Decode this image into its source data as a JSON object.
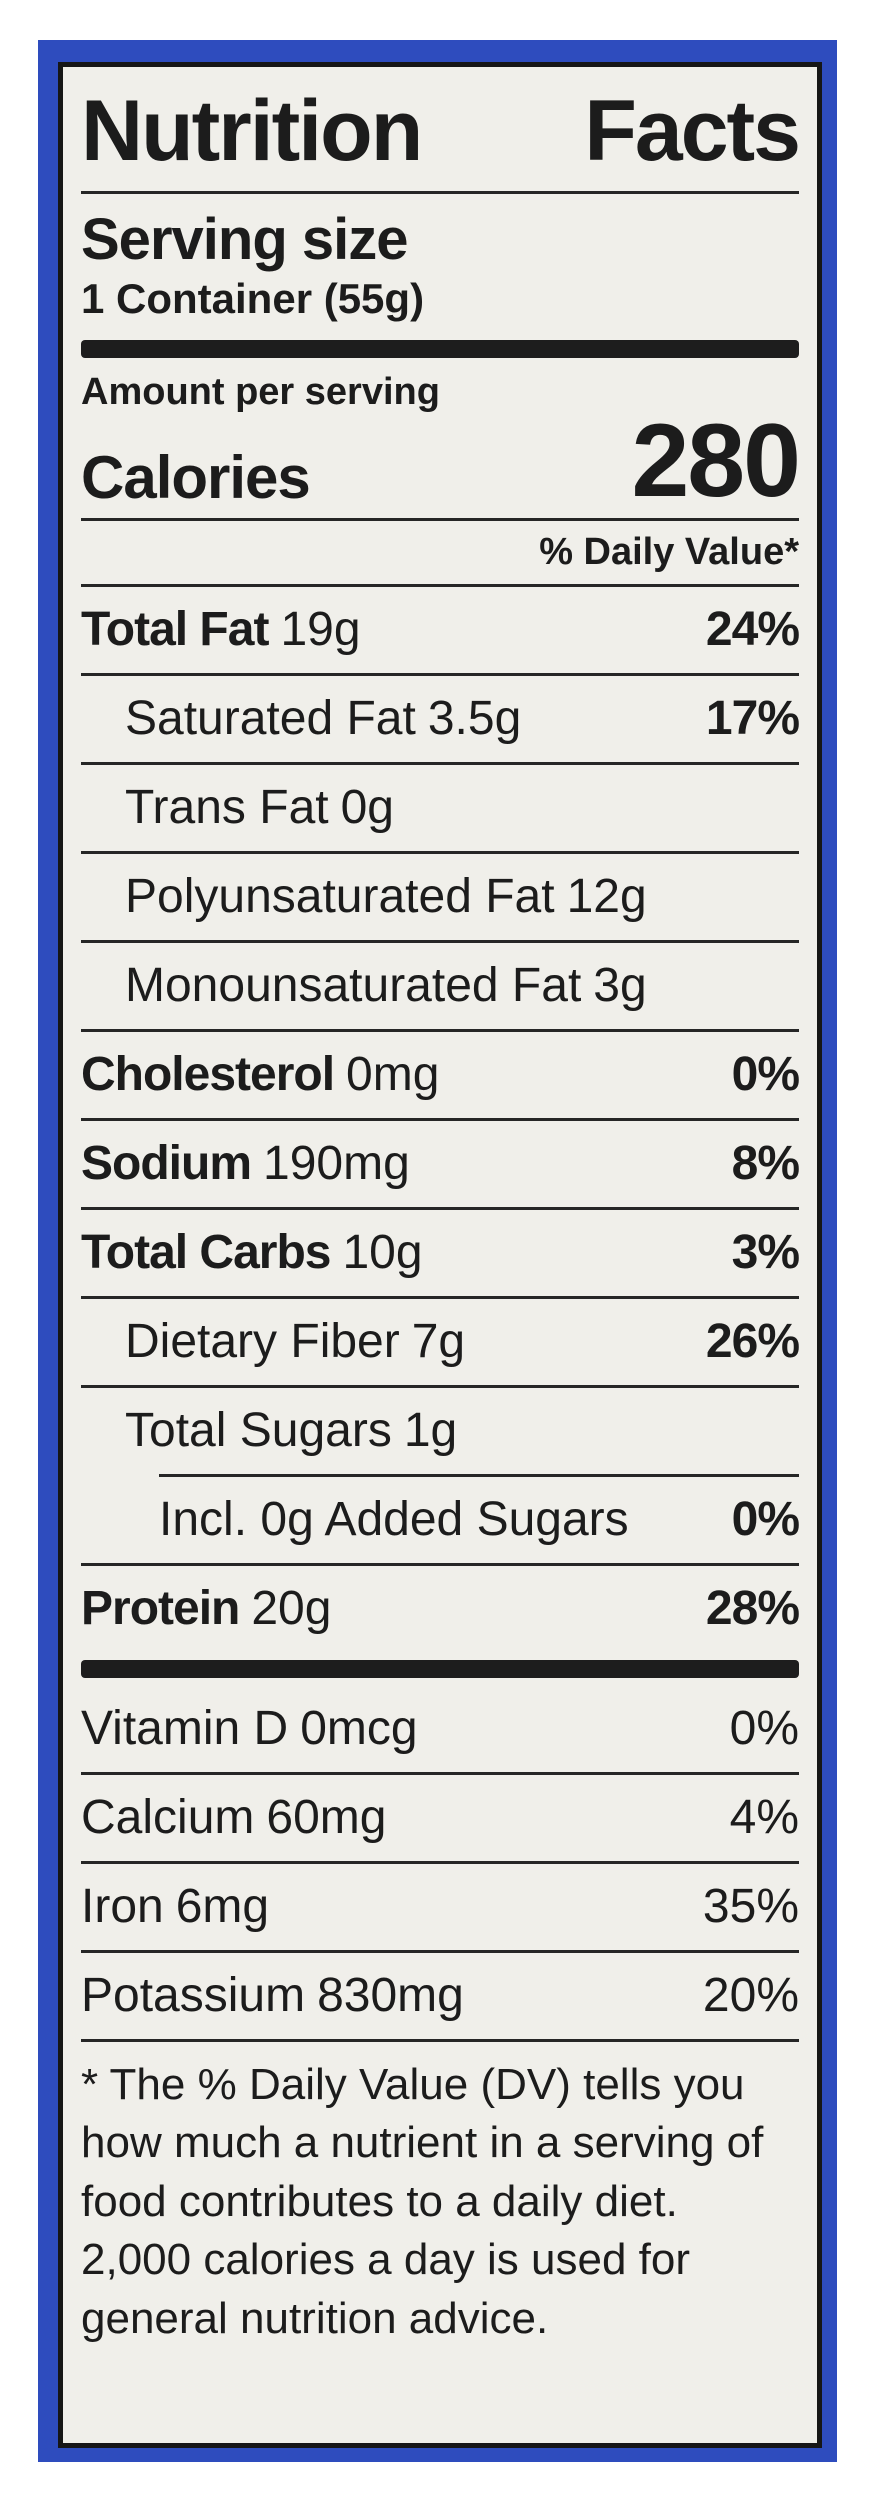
{
  "colors": {
    "frame_blue": "#2e4cbe",
    "label_bg": "#f0efea",
    "ink": "#1c1c1c"
  },
  "label": {
    "title": "Nutrition Facts",
    "serving": {
      "heading": "Serving size",
      "value": "1 Container (55g)"
    },
    "calories": {
      "amount_label": "Amount per serving",
      "label": "Calories",
      "value": "280"
    },
    "daily_value_header": "% Daily Value*",
    "rows": [
      {
        "name": "Total Fat",
        "amount": "19g",
        "dv": "24%",
        "name_bold": true,
        "dv_bold": true,
        "indent": 0
      },
      {
        "name": "Saturated Fat",
        "amount": "3.5g",
        "dv": "17%",
        "name_bold": false,
        "dv_bold": true,
        "indent": 1
      },
      {
        "name": "Trans Fat",
        "amount": "0g",
        "dv": "",
        "name_bold": false,
        "dv_bold": false,
        "indent": 1
      },
      {
        "name": "Polyunsaturated Fat",
        "amount": "12g",
        "dv": "",
        "name_bold": false,
        "dv_bold": false,
        "indent": 1
      },
      {
        "name": "Monounsaturated Fat",
        "amount": "3g",
        "dv": "",
        "name_bold": false,
        "dv_bold": false,
        "indent": 1
      },
      {
        "name": "Cholesterol",
        "amount": "0mg",
        "dv": "0%",
        "name_bold": true,
        "dv_bold": true,
        "indent": 0
      },
      {
        "name": "Sodium",
        "amount": "190mg",
        "dv": "8%",
        "name_bold": true,
        "dv_bold": true,
        "indent": 0
      },
      {
        "name": "Total Carbs",
        "amount": "10g",
        "dv": "3%",
        "name_bold": true,
        "dv_bold": true,
        "indent": 0
      },
      {
        "name": "Dietary Fiber",
        "amount": "7g",
        "dv": "26%",
        "name_bold": false,
        "dv_bold": true,
        "indent": 1
      },
      {
        "name": "Total Sugars",
        "amount": "1g",
        "dv": "",
        "name_bold": false,
        "dv_bold": false,
        "indent": 1
      },
      {
        "name": "Incl. 0g Added Sugars",
        "amount": "",
        "dv": "0%",
        "name_bold": false,
        "dv_bold": true,
        "indent": 2,
        "hr_indent": true
      },
      {
        "name": "Protein",
        "amount": "20g",
        "dv": "28%",
        "name_bold": true,
        "dv_bold": true,
        "indent": 0
      }
    ],
    "vitamins": [
      {
        "name": "Vitamin D",
        "amount": "0mcg",
        "dv": "0%"
      },
      {
        "name": "Calcium",
        "amount": "60mg",
        "dv": "4%"
      },
      {
        "name": "Iron",
        "amount": "6mg",
        "dv": "35%"
      },
      {
        "name": "Potassium",
        "amount": "830mg",
        "dv": "20%"
      }
    ],
    "footnote": "* The % Daily Value (DV) tells you how much a nutrient in a serving of food contributes to a daily diet. 2,000 calories a day is used for general nutrition advice."
  }
}
